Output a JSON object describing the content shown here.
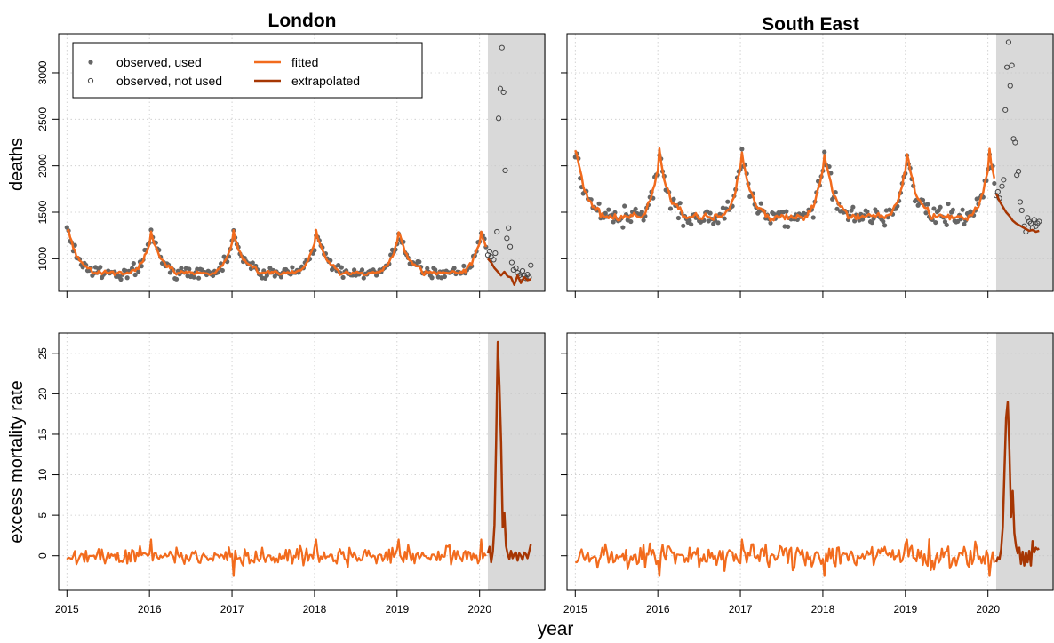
{
  "figure": {
    "xlabel": "year",
    "ylabel_top": "deaths",
    "ylabel_bottom": "excess mortality rate"
  },
  "legend": {
    "entries": [
      {
        "label": "observed, used",
        "symbol": "filled-point",
        "color": "#666666"
      },
      {
        "label": "observed, not used",
        "symbol": "open-point",
        "color": "#444444"
      },
      {
        "label": "fitted",
        "symbol": "line",
        "color": "#F26B1D"
      },
      {
        "label": "extrapolated",
        "symbol": "line",
        "color": "#A63603"
      }
    ],
    "placement": "top-left of first panel"
  },
  "colors": {
    "fitted": "#F26B1D",
    "extrapolated": "#A63603",
    "observed_used": "#666666",
    "observed_not_used": "#444444",
    "shade": "#D9D9D9",
    "grid": "#C8C8C8"
  },
  "chart_data": [
    {
      "type": "line",
      "region": "London",
      "title": "London",
      "ylabel": "deaths",
      "xlim": [
        2014.9,
        2020.8
      ],
      "ylim": [
        650,
        3420
      ],
      "yticks": [
        1000,
        1500,
        2000,
        2500,
        3000
      ],
      "xticks": [
        2015,
        2016,
        2017,
        2018,
        2019,
        2020
      ],
      "grid": true,
      "shaded_from": 2020.1,
      "baseline": 850,
      "winter_peak": 1300,
      "observed_not_used": {
        "x": [
          2020.1,
          2020.12,
          2020.14,
          2020.17,
          2020.19,
          2020.21,
          2020.23,
          2020.25,
          2020.27,
          2020.29,
          2020.31,
          2020.33,
          2020.35,
          2020.37,
          2020.39,
          2020.41,
          2020.44,
          2020.46,
          2020.48,
          2020.5,
          2020.52,
          2020.54,
          2020.56,
          2020.58,
          2020.6,
          2020.62
        ],
        "y": [
          1040,
          1080,
          1020,
          990,
          1060,
          1290,
          2510,
          2830,
          3270,
          2790,
          1950,
          1220,
          1330,
          1130,
          960,
          880,
          900,
          850,
          820,
          800,
          870,
          820,
          790,
          830,
          800,
          930
        ]
      },
      "series": [
        {
          "name": "observed, used",
          "x_range": [
            2015.0,
            2020.08
          ]
        },
        {
          "name": "fitted",
          "x_range": [
            2015.0,
            2020.08
          ]
        },
        {
          "name": "extrapolated",
          "x_range": [
            2020.1,
            2020.62
          ],
          "x": [
            2020.1,
            2020.14,
            2020.18,
            2020.22,
            2020.26,
            2020.3,
            2020.34,
            2020.38,
            2020.42,
            2020.46,
            2020.5,
            2020.54,
            2020.58,
            2020.62
          ],
          "y": [
            1000,
            960,
            900,
            860,
            820,
            860,
            810,
            800,
            720,
            820,
            740,
            800,
            770,
            780
          ]
        }
      ]
    },
    {
      "type": "line",
      "region": "South East",
      "title": "South East",
      "ylabel": "deaths",
      "xlim": [
        2014.9,
        2020.8
      ],
      "ylim": [
        650,
        3420
      ],
      "yticks": [
        1000,
        1500,
        2000,
        2500,
        3000
      ],
      "xticks": [
        2015,
        2016,
        2017,
        2018,
        2019,
        2020
      ],
      "grid": true,
      "shaded_from": 2020.1,
      "baseline": 1450,
      "winter_peak": 2150,
      "observed_not_used": {
        "x": [
          2020.1,
          2020.12,
          2020.14,
          2020.17,
          2020.19,
          2020.21,
          2020.23,
          2020.25,
          2020.27,
          2020.29,
          2020.31,
          2020.33,
          2020.35,
          2020.37,
          2020.39,
          2020.41,
          2020.44,
          2020.46,
          2020.48,
          2020.5,
          2020.52,
          2020.54,
          2020.56,
          2020.58,
          2020.6,
          2020.62
        ],
        "y": [
          1680,
          1720,
          1650,
          1780,
          1850,
          2600,
          3060,
          3330,
          2860,
          3080,
          2290,
          2250,
          1900,
          1940,
          1610,
          1520,
          1350,
          1290,
          1440,
          1400,
          1380,
          1330,
          1420,
          1350,
          1380,
          1400
        ]
      },
      "series": [
        {
          "name": "observed, used",
          "x_range": [
            2015.0,
            2020.08
          ]
        },
        {
          "name": "fitted",
          "x_range": [
            2015.0,
            2020.08
          ]
        },
        {
          "name": "extrapolated",
          "x_range": [
            2020.1,
            2020.62
          ],
          "x": [
            2020.1,
            2020.14,
            2020.18,
            2020.22,
            2020.26,
            2020.3,
            2020.34,
            2020.38,
            2020.42,
            2020.46,
            2020.5,
            2020.54,
            2020.58,
            2020.62
          ],
          "y": [
            1700,
            1620,
            1560,
            1500,
            1460,
            1410,
            1380,
            1360,
            1340,
            1320,
            1300,
            1310,
            1290,
            1300
          ]
        }
      ]
    },
    {
      "type": "line",
      "region": "London",
      "ylabel": "excess mortality rate",
      "xlabel": "year",
      "xlim": [
        2014.9,
        2020.8
      ],
      "ylim": [
        -4.2,
        27.5
      ],
      "yticks": [
        0,
        5,
        10,
        15,
        20,
        25
      ],
      "xticks": [
        2015,
        2016,
        2017,
        2018,
        2019,
        2020
      ],
      "grid": true,
      "shaded_from": 2020.1,
      "series": [
        {
          "name": "fitted",
          "x_range": [
            2015.0,
            2020.08
          ],
          "noise_amplitude": 0.8
        },
        {
          "name": "extrapolated",
          "x": [
            2020.1,
            2020.12,
            2020.14,
            2020.16,
            2020.18,
            2020.2,
            2020.22,
            2020.24,
            2020.26,
            2020.28,
            2020.3,
            2020.32,
            2020.34,
            2020.36,
            2020.38,
            2020.4,
            2020.42,
            2020.44,
            2020.46,
            2020.48,
            2020.5,
            2020.52,
            2020.54,
            2020.56,
            2020.58,
            2020.6,
            2020.62
          ],
          "y": [
            0.3,
            1.1,
            -0.8,
            0.5,
            3.8,
            14.0,
            26.4,
            21.0,
            14.0,
            3.5,
            5.3,
            1.2,
            0.2,
            -0.4,
            0.6,
            -0.3,
            0.2,
            0.4,
            -0.6,
            0.3,
            0.0,
            -0.5,
            0.4,
            0.2,
            -0.3,
            0.5,
            1.4
          ]
        }
      ]
    },
    {
      "type": "line",
      "region": "South East",
      "ylabel": "excess mortality rate",
      "xlabel": "year",
      "xlim": [
        2014.9,
        2020.8
      ],
      "ylim": [
        -4.2,
        27.5
      ],
      "yticks": [
        0,
        5,
        10,
        15,
        20,
        25
      ],
      "xticks": [
        2015,
        2016,
        2017,
        2018,
        2019,
        2020
      ],
      "grid": true,
      "shaded_from": 2020.1,
      "series": [
        {
          "name": "fitted",
          "x_range": [
            2015.0,
            2020.08
          ],
          "noise_amplitude": 1.2
        },
        {
          "name": "extrapolated",
          "x": [
            2020.1,
            2020.12,
            2020.14,
            2020.16,
            2020.18,
            2020.2,
            2020.22,
            2020.24,
            2020.26,
            2020.28,
            2020.3,
            2020.32,
            2020.34,
            2020.36,
            2020.38,
            2020.4,
            2020.42,
            2020.44,
            2020.46,
            2020.48,
            2020.5,
            2020.52,
            2020.54,
            2020.56,
            2020.58,
            2020.6,
            2020.62
          ],
          "y": [
            -0.8,
            -0.2,
            -0.4,
            0.8,
            3.6,
            10.5,
            17.0,
            19.0,
            13.0,
            4.8,
            8.0,
            2.8,
            1.2,
            0.3,
            1.0,
            -1.0,
            0.5,
            -1.2,
            0.4,
            -0.8,
            0.6,
            -1.2,
            1.8,
            0.4,
            1.0,
            0.8,
            0.9
          ]
        }
      ]
    }
  ]
}
